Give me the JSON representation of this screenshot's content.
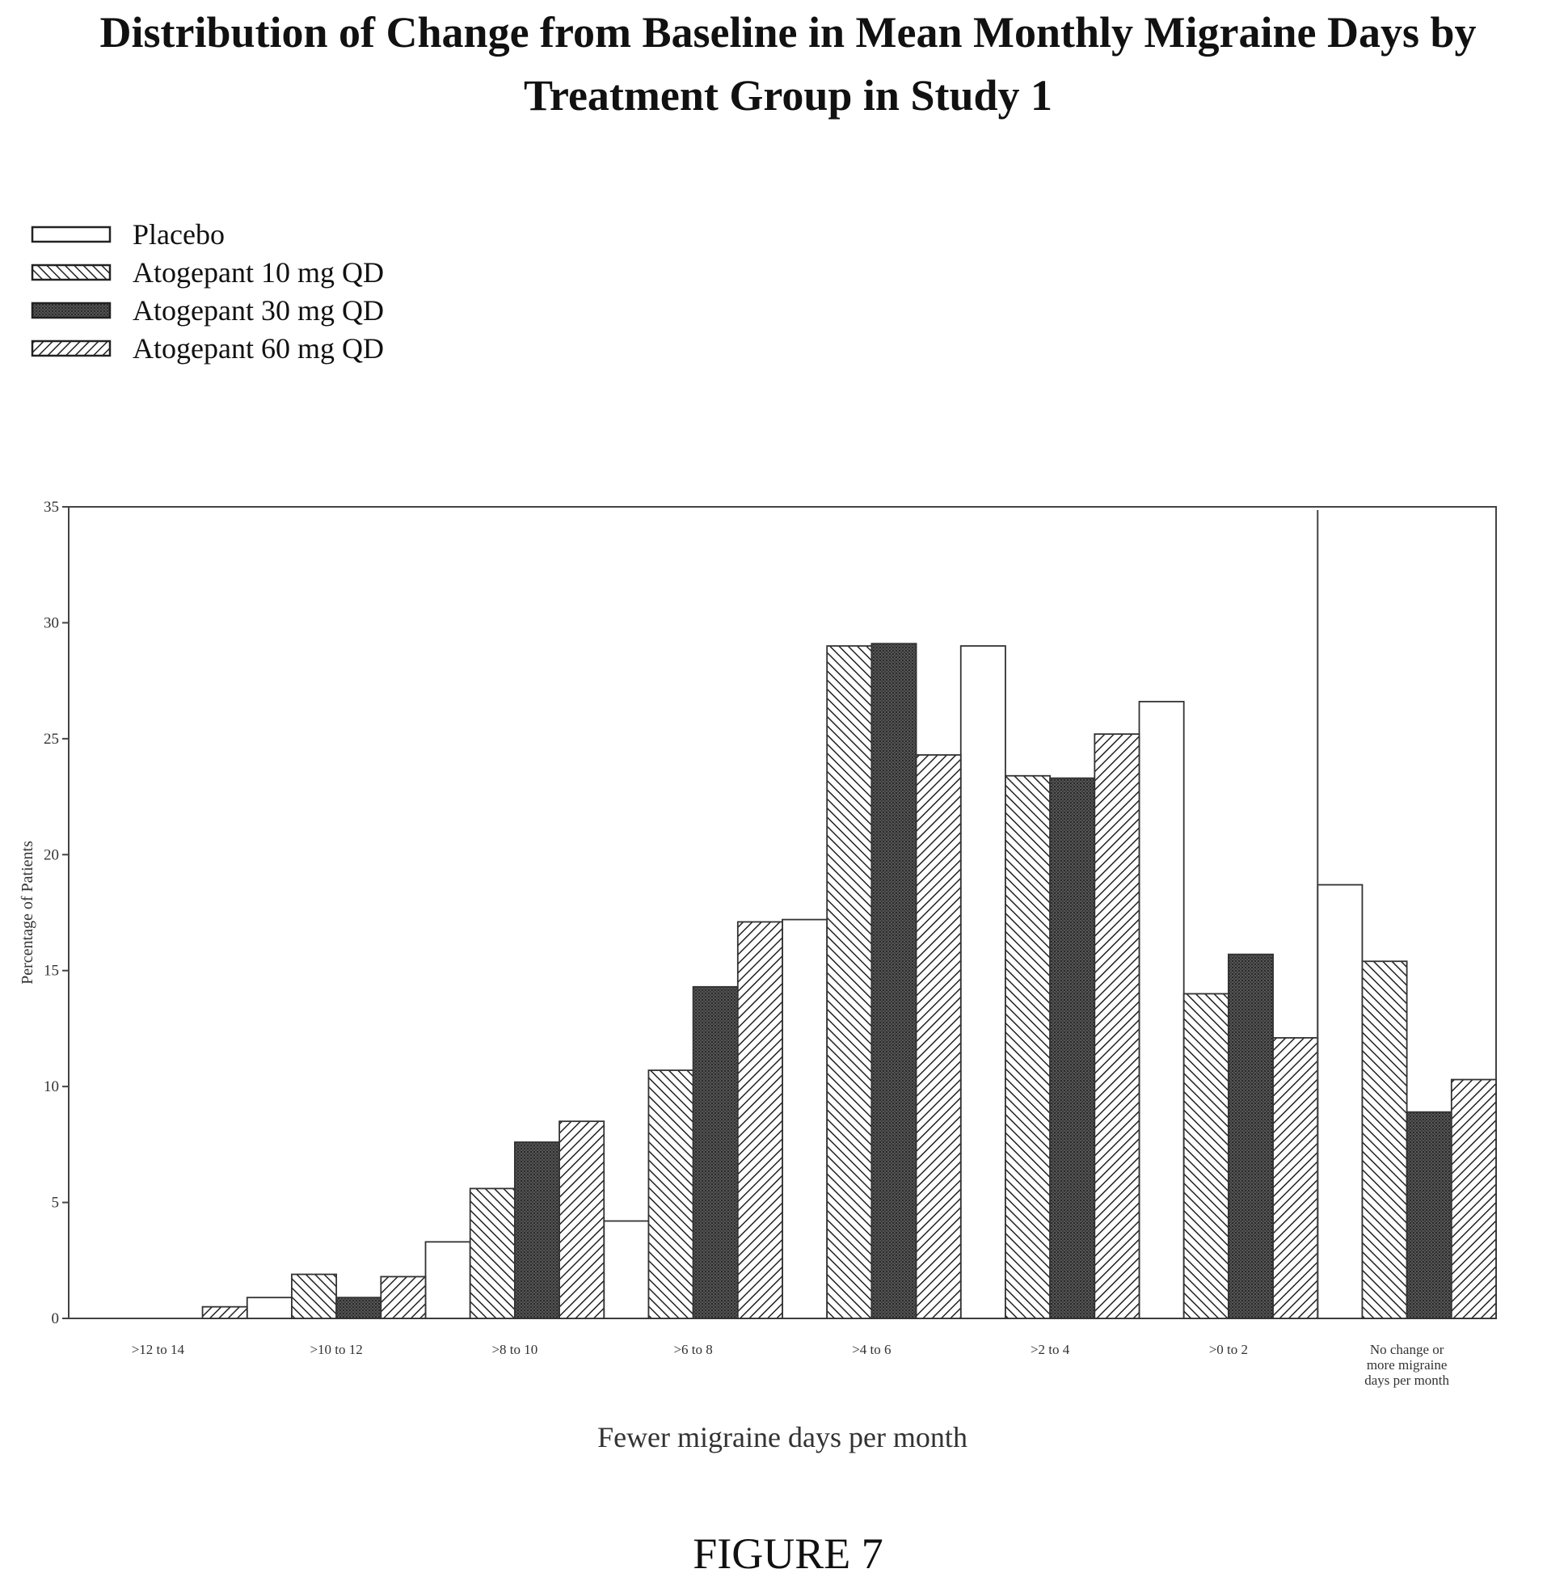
{
  "figure_label": "FIGURE 7",
  "colors": {
    "placebo": "#ffffff",
    "atogepant_10": "#ffffff",
    "atogepant_30": "#555555",
    "atogepant_60": "#ffffff",
    "stroke": "#333333"
  },
  "chart_data": {
    "type": "bar",
    "title": "Distribution of Change from Baseline in Mean Monthly Migraine Days by Treatment Group in Study 1",
    "title_lines": [
      "Distribution of Change from Baseline in Mean Monthly Migraine Days by",
      "Treatment Group in Study 1"
    ],
    "xlabel": "Fewer migraine days per month",
    "ylabel": "Percentage of Patients",
    "ylim": [
      0,
      35
    ],
    "yticks": [
      0,
      5,
      10,
      15,
      20,
      25,
      30,
      35
    ],
    "grid": false,
    "legend_position": "top-left",
    "categories": [
      ">12 to 14",
      ">10 to 12",
      ">8 to 10",
      ">6 to 8",
      ">4 to 6",
      ">2 to 4",
      ">0 to 2",
      "No change or more migraine days per month"
    ],
    "category_label_lines": [
      [
        ">12 to 14"
      ],
      [
        ">10 to 12"
      ],
      [
        ">8 to 10"
      ],
      [
        ">6 to 8"
      ],
      [
        ">4 to 6"
      ],
      [
        ">2 to 4"
      ],
      [
        ">0 to 2"
      ],
      [
        "No change or",
        "more migraine",
        "days per month"
      ]
    ],
    "series": [
      {
        "name": "Placebo",
        "pattern": "none",
        "values": [
          0,
          0.9,
          3.3,
          4.2,
          17.2,
          29.0,
          26.6,
          18.7
        ]
      },
      {
        "name": "Atogepant 10 mg QD",
        "pattern": "back-hatch",
        "values": [
          0,
          1.9,
          5.6,
          10.7,
          29.0,
          23.4,
          14.0,
          15.4
        ]
      },
      {
        "name": "Atogepant 30 mg QD",
        "pattern": "dark",
        "values": [
          0,
          0.9,
          7.6,
          14.3,
          29.1,
          23.3,
          15.7,
          8.9
        ]
      },
      {
        "name": "Atogepant 60 mg QD",
        "pattern": "forward-hatch",
        "values": [
          0.5,
          1.8,
          8.5,
          17.1,
          24.3,
          25.2,
          12.1,
          10.3
        ]
      }
    ]
  }
}
